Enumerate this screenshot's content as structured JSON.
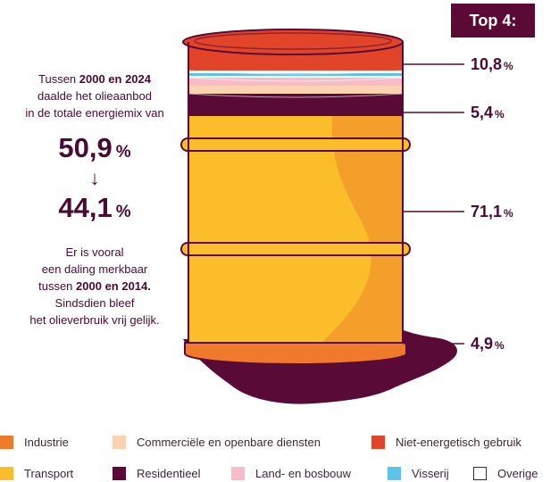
{
  "badge": "Top 4:",
  "intro": {
    "p1": "Tussen ",
    "b1": "2000 en 2024",
    "p2": "daalde het olieaanbod",
    "p3": "in de totale energiemix van"
  },
  "from_value": "50,9",
  "arrow": "↓",
  "to_value": "44,1",
  "pct": "%",
  "detail": {
    "p1": "Er is vooral",
    "p2": "een daling merkbaar",
    "p3": "tussen ",
    "b1": "2000 en 2014.",
    "p4": "Sindsdien bleef",
    "p5": "het olieverbruik vrij gelijk."
  },
  "chart_data": {
    "type": "bar",
    "stacked": true,
    "categories": [
      "Niet-energetisch gebruik",
      "Residentieel",
      "Transport",
      "Industrie"
    ],
    "values": [
      10.8,
      5.4,
      71.1,
      4.9
    ],
    "value_labels": [
      "10,8",
      "5,4",
      "71,1",
      "4,9"
    ],
    "unit": "%",
    "colors": {
      "Industrie": "#f07a2c",
      "Commerciële en openbare diensten": "#fcd3b0",
      "Niet-energetisch gebruik": "#e2442a",
      "Transport": "#fbbd2a",
      "Residentieel": "#5a0a36",
      "Land- en bosbouw": "#f8bcc8",
      "Visserij": "#5ec3ea",
      "Overige": "#ffffff"
    },
    "legend": [
      {
        "label": "Industrie",
        "color": "#f07a2c"
      },
      {
        "label": "Commerciële en openbare diensten",
        "color": "#fcd3b0"
      },
      {
        "label": "Niet-energetisch gebruik",
        "color": "#e2442a"
      },
      {
        "label": "Transport",
        "color": "#fbbd2a"
      },
      {
        "label": "Residentieel",
        "color": "#5a0a36"
      },
      {
        "label": "Land- en bosbouw",
        "color": "#f8bcc8"
      },
      {
        "label": "Visserij",
        "color": "#5ec3ea"
      },
      {
        "label": "Overige",
        "color": "#ffffff"
      }
    ]
  }
}
